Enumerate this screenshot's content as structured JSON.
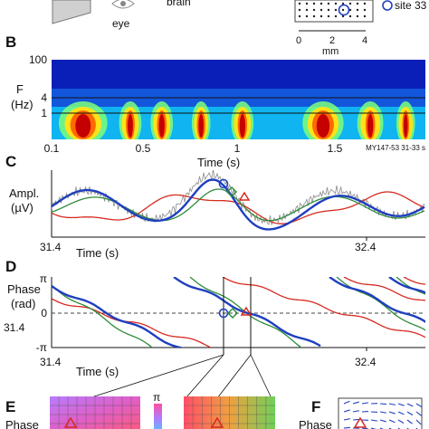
{
  "colors": {
    "blue": "#1f3fbf",
    "green": "#2e8b3a",
    "red": "#d62a20",
    "gray": "#8a8a8a"
  },
  "panel_a": {
    "eye_label": "eye",
    "brain_label": "brain",
    "site_label": "site 33",
    "mm_label": "mm",
    "ticks": [
      "0",
      "2",
      "4"
    ]
  },
  "chart_data": [
    {
      "panel": "B",
      "type": "heatmap",
      "ylabel": "F\n(Hz)",
      "y_ticks": [
        "100",
        "4",
        "1"
      ],
      "x_ticks": [
        "0.1",
        "0.5",
        "1",
        "1.5"
      ],
      "xlabel": "Time (s)",
      "annotation": "MY147-53 31-33 s",
      "x_range": [
        0.1,
        2.0
      ],
      "bursts": [
        {
          "t": 0.26,
          "width": 0.13,
          "strength": 1.0
        },
        {
          "t": 0.5,
          "width": 0.06,
          "strength": 0.75
        },
        {
          "t": 0.66,
          "width": 0.06,
          "strength": 0.8
        },
        {
          "t": 0.86,
          "width": 0.05,
          "strength": 0.85
        },
        {
          "t": 1.07,
          "width": 0.06,
          "strength": 0.8
        },
        {
          "t": 1.48,
          "width": 0.11,
          "strength": 1.0
        },
        {
          "t": 1.72,
          "width": 0.07,
          "strength": 0.7
        },
        {
          "t": 1.9,
          "width": 0.05,
          "strength": 0.7
        }
      ]
    },
    {
      "panel": "C",
      "type": "line",
      "ylabel": "Ampl.\n(µV)",
      "xlabel": "Time (s)",
      "x_ticks": [
        "31.4",
        "32.4"
      ],
      "x_range": [
        31.4,
        32.9
      ]
    },
    {
      "panel": "D",
      "type": "line",
      "ylabel": "Phase\n(rad)",
      "y_ticks": [
        "π",
        "0",
        "-π"
      ],
      "side_tick": "31.4",
      "xlabel": "Time (s)",
      "x_ticks": [
        "31.4",
        "32.4"
      ],
      "x_range": [
        31.4,
        32.9
      ],
      "cursor_times": [
        31.99,
        32.1
      ]
    },
    {
      "panel": "E",
      "type": "heatmap",
      "ylabel": "Phase",
      "colorbar_top": "π"
    },
    {
      "panel": "F",
      "type": "other",
      "ylabel": "Phase"
    }
  ]
}
